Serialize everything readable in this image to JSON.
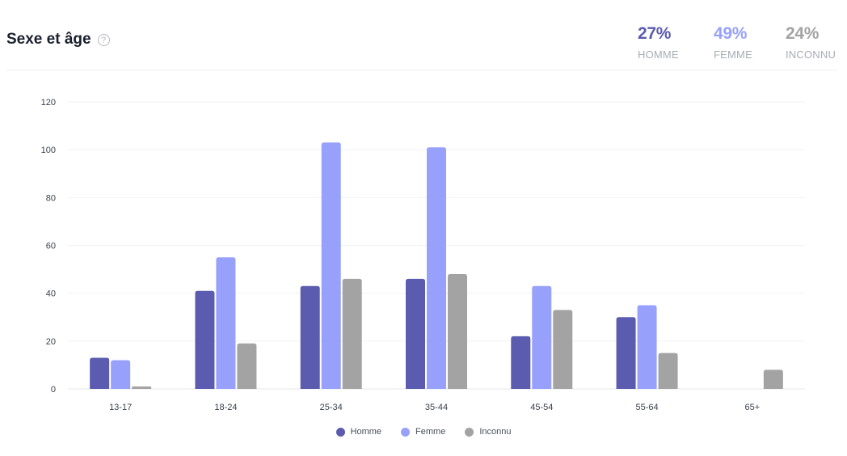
{
  "header": {
    "title": "Sexe et âge",
    "help_icon": "question-circle-icon"
  },
  "stats": [
    {
      "value": "27%",
      "label": "HOMME",
      "color": "#5b5bb0"
    },
    {
      "value": "49%",
      "label": "FEMME",
      "color": "#97a1fb"
    },
    {
      "value": "24%",
      "label": "INCONNU",
      "color": "#a3a3a3"
    }
  ],
  "chart_data": {
    "type": "bar",
    "categories": [
      "13-17",
      "18-24",
      "25-34",
      "35-44",
      "45-54",
      "55-64",
      "65+"
    ],
    "series": [
      {
        "name": "Homme",
        "color": "#5b5bb0",
        "values": [
          13,
          41,
          43,
          46,
          22,
          30,
          0
        ]
      },
      {
        "name": "Femme",
        "color": "#97a1fb",
        "values": [
          12,
          55,
          103,
          101,
          43,
          35,
          0
        ]
      },
      {
        "name": "Inconnu",
        "color": "#a3a3a3",
        "values": [
          1,
          19,
          46,
          48,
          33,
          15,
          8
        ]
      }
    ],
    "ylim": [
      0,
      120
    ],
    "yticks": [
      0,
      20,
      40,
      60,
      80,
      100,
      120
    ],
    "grid": true,
    "legend_position": "bottom-center"
  }
}
